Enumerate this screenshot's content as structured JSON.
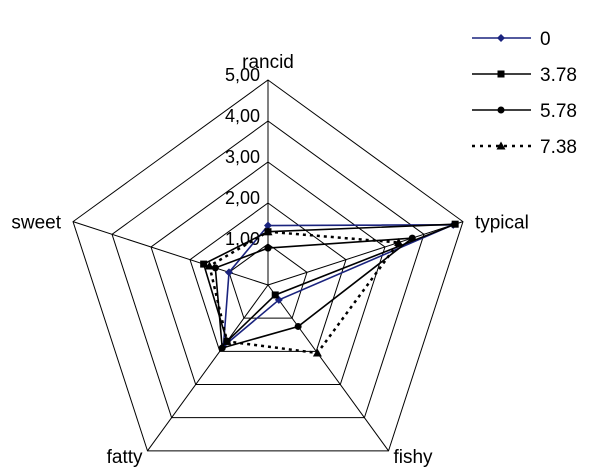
{
  "chart_data": {
    "type": "radar",
    "axes": [
      "rancid",
      "typical",
      "fishy",
      "fatty",
      "sweet"
    ],
    "range": [
      0,
      5
    ],
    "ticks": [
      "1,00",
      "2,00",
      "3,00",
      "4,00",
      "5,00"
    ],
    "grid": true,
    "legend_position": "top-right",
    "series": [
      {
        "name": "0",
        "values": [
          1.45,
          4.75,
          0.45,
          1.85,
          1.0
        ],
        "color": "#1a237e",
        "dash": "solid",
        "marker": "diamond"
      },
      {
        "name": "3.78",
        "values": [
          1.3,
          4.8,
          0.3,
          1.7,
          1.65
        ],
        "color": "#000000",
        "dash": "solid",
        "marker": "square"
      },
      {
        "name": "5.78",
        "values": [
          0.9,
          3.7,
          1.25,
          1.9,
          1.35
        ],
        "color": "#000000",
        "dash": "solid",
        "marker": "circle"
      },
      {
        "name": "7.38",
        "values": [
          1.3,
          3.35,
          2.05,
          1.7,
          1.5
        ],
        "color": "#000000",
        "dash": "dotted",
        "marker": "triangle"
      }
    ]
  }
}
